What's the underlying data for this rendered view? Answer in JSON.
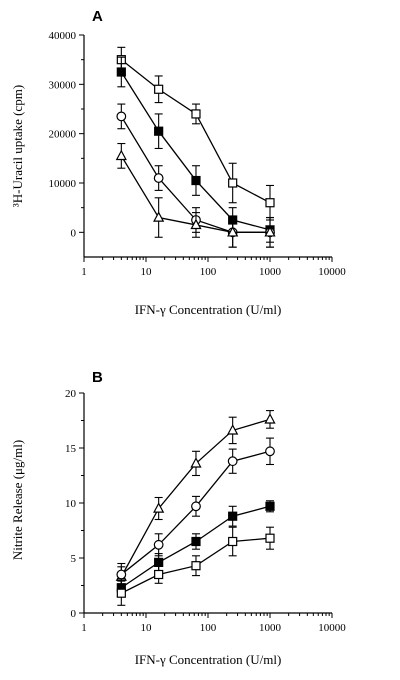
{
  "chart_data": [
    {
      "type": "line",
      "panel_label": "A",
      "xlabel": "IFN-γ Concentration (U/ml)",
      "ylabel": "³H-Uracil uptake (cpm)",
      "xscale": "log",
      "xlim": [
        1,
        10000
      ],
      "ylim": [
        -5000,
        40000
      ],
      "x_ticks": [
        "1",
        "10",
        "100",
        "1000",
        "10000"
      ],
      "y_ticks": [
        "0",
        "10000",
        "20000",
        "30000",
        "40000"
      ],
      "grid": false,
      "legend": "none",
      "x": [
        4,
        16,
        64,
        250,
        1000
      ],
      "series": [
        {
          "marker": "open-square",
          "values": [
            35000,
            29000,
            24000,
            10000,
            6000
          ],
          "errors": [
            2500,
            2700,
            2000,
            4000,
            3500
          ]
        },
        {
          "marker": "filled-square",
          "values": [
            32500,
            20500,
            10500,
            2500,
            500
          ],
          "errors": [
            3000,
            3500,
            3000,
            2500,
            2500
          ]
        },
        {
          "marker": "open-circle",
          "values": [
            23500,
            11000,
            2500,
            0,
            0
          ],
          "errors": [
            2500,
            2500,
            2500,
            3000,
            3000
          ]
        },
        {
          "marker": "open-triangle",
          "values": [
            15500,
            3000,
            1500,
            0,
            0
          ],
          "errors": [
            2500,
            4000,
            2500,
            3000,
            3000
          ]
        }
      ]
    },
    {
      "type": "line",
      "panel_label": "B",
      "xlabel": "IFN-γ Concentration (U/ml)",
      "ylabel": "Nitrite Release (μg/ml)",
      "xscale": "log",
      "xlim": [
        1,
        10000
      ],
      "ylim": [
        0,
        20
      ],
      "x_ticks": [
        "1",
        "10",
        "100",
        "1000",
        "10000"
      ],
      "y_ticks": [
        "0",
        "5",
        "10",
        "15",
        "20"
      ],
      "grid": false,
      "legend": "none",
      "x": [
        4,
        16,
        64,
        250,
        1000
      ],
      "series": [
        {
          "marker": "open-triangle",
          "values": [
            3.3,
            9.5,
            13.6,
            16.6,
            17.6
          ],
          "errors": [
            0.9,
            1.0,
            1.1,
            1.2,
            0.8
          ]
        },
        {
          "marker": "open-circle",
          "values": [
            3.5,
            6.2,
            9.7,
            13.8,
            14.7
          ],
          "errors": [
            1.0,
            1.0,
            0.9,
            1.1,
            1.2
          ]
        },
        {
          "marker": "filled-square",
          "values": [
            2.3,
            4.6,
            6.5,
            8.8,
            9.7
          ],
          "errors": [
            0.8,
            0.8,
            0.7,
            0.9,
            0.5
          ]
        },
        {
          "marker": "open-square",
          "values": [
            1.8,
            3.5,
            4.3,
            6.5,
            6.8
          ],
          "errors": [
            1.1,
            0.8,
            0.9,
            1.3,
            1.0
          ]
        }
      ]
    }
  ]
}
